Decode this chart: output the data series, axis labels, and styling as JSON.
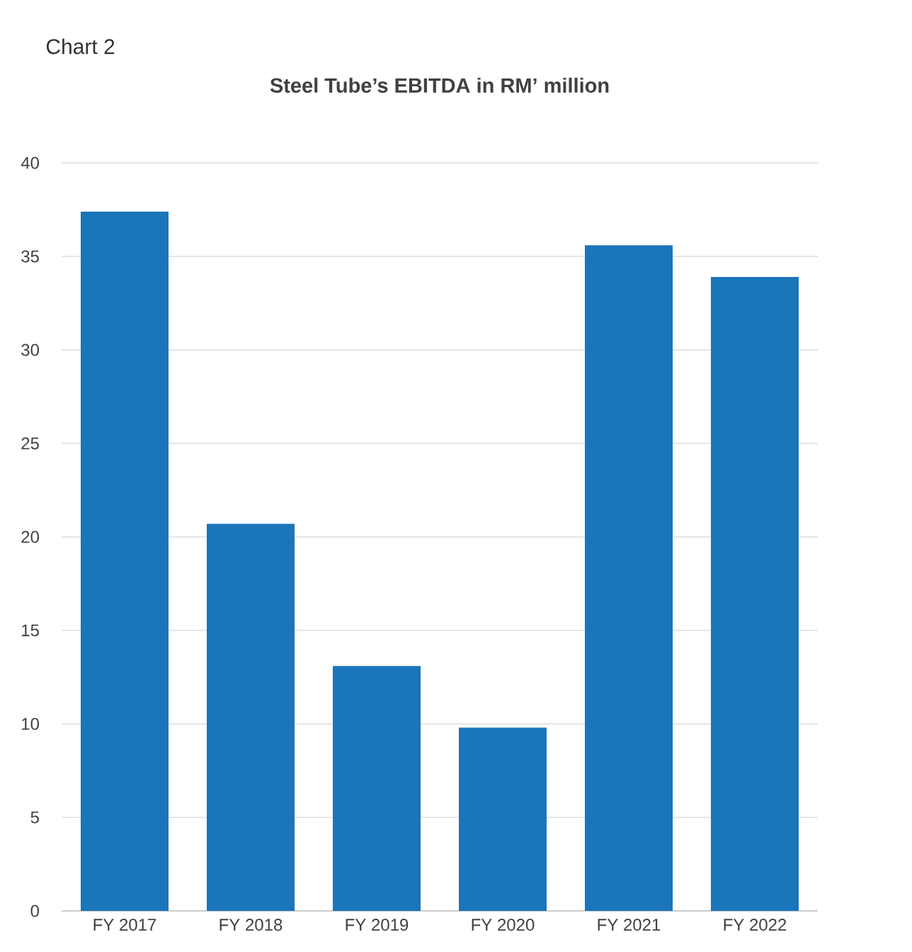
{
  "chart_data": {
    "type": "bar",
    "title": "Steel Tube’s EBITDA in RM’ million",
    "annotations": [
      "Chart 2"
    ],
    "categories": [
      "FY 2017",
      "FY 2018",
      "FY 2019",
      "FY 2020",
      "FY 2021",
      "FY 2022"
    ],
    "values": [
      37.4,
      20.7,
      13.1,
      9.8,
      35.6,
      33.9
    ],
    "color": "#1b75bb",
    "ylim": [
      0,
      40
    ],
    "yticks": [
      0,
      5,
      10,
      15,
      20,
      25,
      30,
      35,
      40
    ],
    "grid": "y"
  }
}
